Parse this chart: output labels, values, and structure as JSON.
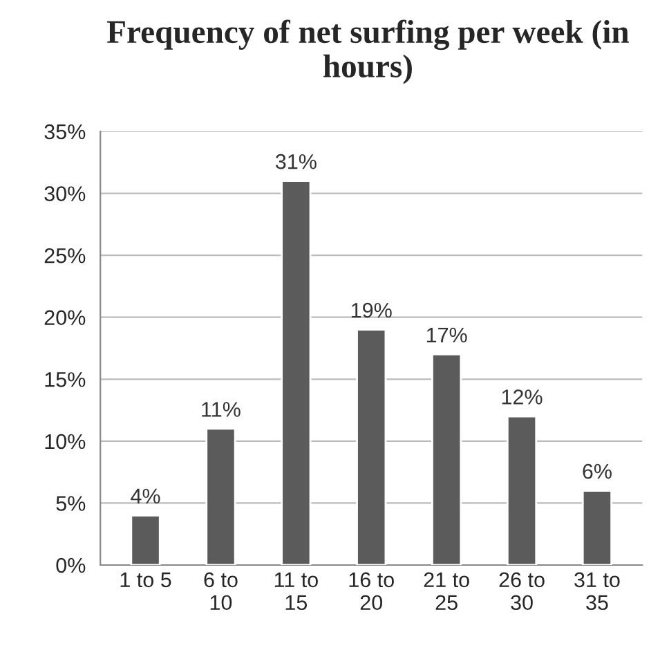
{
  "chart_data": {
    "type": "bar",
    "title": "Frequency of net surfing per week (in hours)",
    "categories": [
      "1 to 5",
      "6 to\n10",
      "11 to\n15",
      "16 to\n20",
      "21 to\n25",
      "26 to\n30",
      "31 to\n35"
    ],
    "values": [
      4,
      11,
      31,
      19,
      17,
      12,
      6
    ],
    "value_labels": [
      "4%",
      "11%",
      "31%",
      "19%",
      "17%",
      "12%",
      "6%"
    ],
    "color": "#5b5b5b",
    "ylim": [
      0,
      35
    ],
    "yticks": [
      {
        "value": 0,
        "label": "0%"
      },
      {
        "value": 5,
        "label": "5%"
      },
      {
        "value": 10,
        "label": "10%"
      },
      {
        "value": 15,
        "label": "15%"
      },
      {
        "value": 20,
        "label": "20%"
      },
      {
        "value": 25,
        "label": "25%"
      },
      {
        "value": 30,
        "label": "30%"
      },
      {
        "value": 35,
        "label": "35%"
      }
    ],
    "grid": "y"
  }
}
